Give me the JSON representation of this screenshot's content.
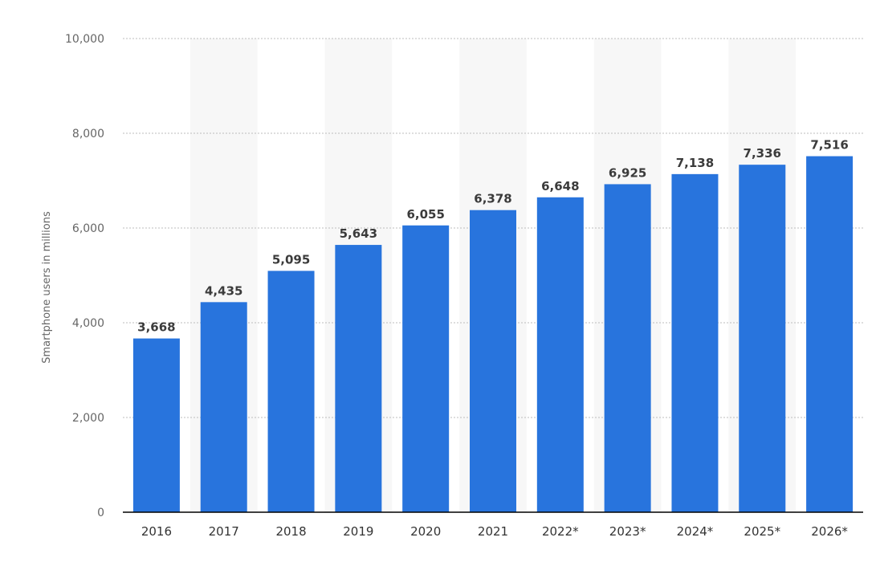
{
  "chart_data": {
    "type": "bar",
    "title": "",
    "xlabel": "",
    "ylabel": "Smartphone users in millions",
    "ylim": [
      0,
      10000
    ],
    "yticks": [
      0,
      2000,
      4000,
      6000,
      8000,
      10000
    ],
    "ytick_labels": [
      "0",
      "2,000",
      "4,000",
      "6,000",
      "8,000",
      "10,000"
    ],
    "grid": true,
    "legend": "none",
    "categories": [
      "2016",
      "2017",
      "2018",
      "2019",
      "2020",
      "2021",
      "2022*",
      "2023*",
      "2024*",
      "2025*",
      "2026*"
    ],
    "values": [
      3668,
      4435,
      5095,
      5643,
      6055,
      6378,
      6648,
      6925,
      7138,
      7336,
      7516
    ],
    "value_labels": [
      "3,668",
      "4,435",
      "5,095",
      "5,643",
      "6,055",
      "6,378",
      "6,648",
      "6,925",
      "7,138",
      "7,336",
      "7,516"
    ],
    "colors": {
      "bar": "#2874dd",
      "band": "#f7f7f7",
      "grid": "#bdbdbd",
      "axis": "#000000"
    }
  }
}
